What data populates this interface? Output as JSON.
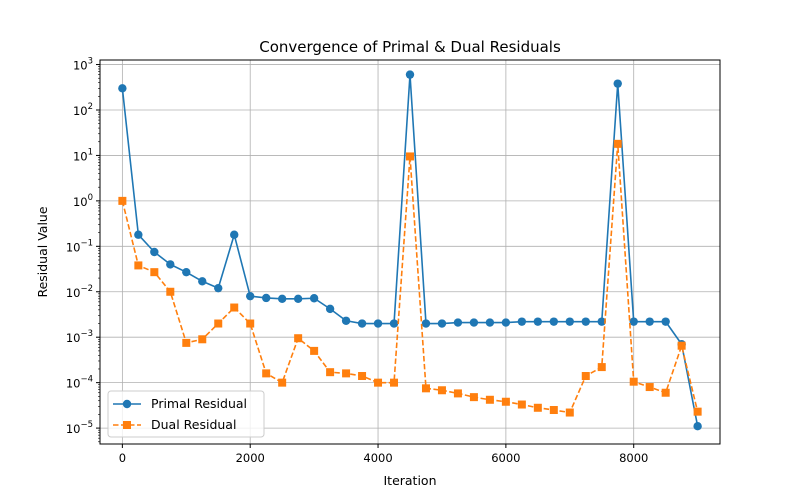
{
  "chart_data": {
    "type": "line",
    "title": "Convergence of Primal & Dual Residuals",
    "xlabel": "Iteration",
    "ylabel": "Residual Value",
    "xlim": [
      -350,
      9350
    ],
    "ylim_log10": [
      -5.35,
      3.1
    ],
    "yscale": "log",
    "grid": true,
    "legend_position": "lower-left",
    "x_ticks": [
      0,
      2000,
      4000,
      6000,
      8000
    ],
    "x_tick_labels": [
      "0",
      "2000",
      "4000",
      "6000",
      "8000"
    ],
    "y_ticks_exp": [
      -5,
      -4,
      -3,
      -2,
      -1,
      0,
      1,
      2,
      3
    ],
    "y_tick_labels": [
      {
        "base": "10",
        "exp": "−5"
      },
      {
        "base": "10",
        "exp": "−4"
      },
      {
        "base": "10",
        "exp": "−3"
      },
      {
        "base": "10",
        "exp": "−2"
      },
      {
        "base": "10",
        "exp": "−1"
      },
      {
        "base": "10",
        "exp": "0"
      },
      {
        "base": "10",
        "exp": "1"
      },
      {
        "base": "10",
        "exp": "2"
      },
      {
        "base": "10",
        "exp": "3"
      }
    ],
    "x": [
      0,
      250,
      500,
      750,
      1000,
      1250,
      1500,
      1750,
      2000,
      2250,
      2500,
      2750,
      3000,
      3250,
      3500,
      3750,
      4000,
      4250,
      4500,
      4750,
      5000,
      5250,
      5500,
      5750,
      6000,
      6250,
      6500,
      6750,
      7000,
      7250,
      7500,
      7750,
      8000,
      8250,
      8500,
      8750,
      9000
    ],
    "series": [
      {
        "name": "Primal Residual",
        "color": "#1f77b4",
        "marker": "circle",
        "linestyle": "solid",
        "values": [
          300,
          0.18,
          0.075,
          0.04,
          0.027,
          0.017,
          0.012,
          0.18,
          0.008,
          0.0073,
          0.007,
          0.007,
          0.0072,
          0.0042,
          0.0023,
          0.002,
          0.002,
          0.002,
          600,
          0.002,
          0.002,
          0.0021,
          0.0021,
          0.0021,
          0.0021,
          0.0022,
          0.0022,
          0.0022,
          0.0022,
          0.0022,
          0.0022,
          380,
          0.0022,
          0.0022,
          0.0022,
          0.0007,
          1.1e-05
        ]
      },
      {
        "name": "Dual Residual",
        "color": "#ff7f0e",
        "marker": "square",
        "linestyle": "dashed",
        "values": [
          1.0,
          0.038,
          0.027,
          0.01,
          0.00075,
          0.0009,
          0.002,
          0.0045,
          0.002,
          0.00016,
          0.0001,
          0.00095,
          0.0005,
          0.00017,
          0.00016,
          0.00014,
          0.0001,
          0.0001,
          9.5,
          7.5e-05,
          6.8e-05,
          5.8e-05,
          4.8e-05,
          4.2e-05,
          3.8e-05,
          3.3e-05,
          2.8e-05,
          2.5e-05,
          2.2e-05,
          0.00014,
          0.00022,
          18,
          0.000105,
          8e-05,
          6e-05,
          0.00065,
          2.3e-05
        ]
      }
    ]
  }
}
